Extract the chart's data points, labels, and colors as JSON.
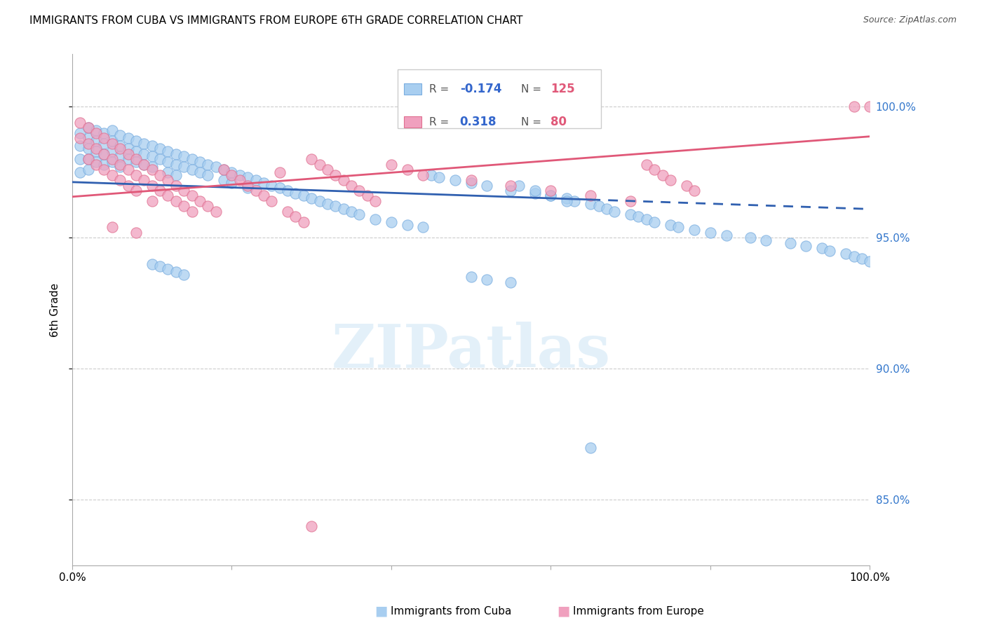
{
  "title": "IMMIGRANTS FROM CUBA VS IMMIGRANTS FROM EUROPE 6TH GRADE CORRELATION CHART",
  "source": "Source: ZipAtlas.com",
  "ylabel": "6th Grade",
  "cuba_color": "#a8cef0",
  "cuba_edge": "#7aaee0",
  "europe_color": "#f0a0be",
  "europe_edge": "#e07090",
  "trendline_cuba_color": "#3060b0",
  "trendline_europe_color": "#e05878",
  "watermark_text": "ZIPatlas",
  "legend_label_cuba": "Immigrants from Cuba",
  "legend_label_europe": "Immigrants from Europe",
  "xlim": [
    0.0,
    1.0
  ],
  "ylim": [
    0.825,
    1.02
  ],
  "yticks": [
    0.85,
    0.9,
    0.95,
    1.0
  ],
  "ytick_labels": [
    "85.0%",
    "90.0%",
    "95.0%",
    "100.0%"
  ],
  "xtick_positions": [
    0.0,
    0.2,
    0.4,
    0.6,
    0.8,
    1.0
  ],
  "xtick_labels": [
    "0.0%",
    "",
    "",
    "",
    "",
    "100.0%"
  ],
  "cuba_R": -0.174,
  "cuba_N": 125,
  "europe_R": 0.318,
  "europe_N": 80,
  "cuba_x": [
    0.01,
    0.01,
    0.01,
    0.01,
    0.02,
    0.02,
    0.02,
    0.02,
    0.02,
    0.03,
    0.03,
    0.03,
    0.03,
    0.04,
    0.04,
    0.04,
    0.04,
    0.05,
    0.05,
    0.05,
    0.05,
    0.06,
    0.06,
    0.06,
    0.06,
    0.07,
    0.07,
    0.07,
    0.08,
    0.08,
    0.08,
    0.09,
    0.09,
    0.09,
    0.1,
    0.1,
    0.1,
    0.11,
    0.11,
    0.12,
    0.12,
    0.12,
    0.13,
    0.13,
    0.13,
    0.14,
    0.14,
    0.15,
    0.15,
    0.16,
    0.16,
    0.17,
    0.17,
    0.18,
    0.19,
    0.19,
    0.2,
    0.2,
    0.21,
    0.22,
    0.22,
    0.23,
    0.24,
    0.25,
    0.26,
    0.27,
    0.28,
    0.29,
    0.3,
    0.31,
    0.32,
    0.33,
    0.34,
    0.35,
    0.36,
    0.38,
    0.4,
    0.42,
    0.44,
    0.45,
    0.46,
    0.48,
    0.5,
    0.52,
    0.55,
    0.58,
    0.6,
    0.62,
    0.63,
    0.65,
    0.66,
    0.67,
    0.68,
    0.7,
    0.71,
    0.72,
    0.73,
    0.75,
    0.76,
    0.78,
    0.8,
    0.82,
    0.85,
    0.87,
    0.9,
    0.92,
    0.94,
    0.95,
    0.97,
    0.98,
    0.99,
    1.0,
    0.1,
    0.11,
    0.12,
    0.13,
    0.14,
    0.5,
    0.52,
    0.55,
    0.56,
    0.58,
    0.6,
    0.62,
    0.65
  ],
  "cuba_y": [
    0.99,
    0.985,
    0.98,
    0.975,
    0.992,
    0.988,
    0.984,
    0.98,
    0.976,
    0.991,
    0.987,
    0.983,
    0.979,
    0.99,
    0.986,
    0.982,
    0.978,
    0.991,
    0.987,
    0.983,
    0.979,
    0.989,
    0.985,
    0.981,
    0.977,
    0.988,
    0.984,
    0.98,
    0.987,
    0.983,
    0.979,
    0.986,
    0.982,
    0.978,
    0.985,
    0.981,
    0.977,
    0.984,
    0.98,
    0.983,
    0.979,
    0.975,
    0.982,
    0.978,
    0.974,
    0.981,
    0.977,
    0.98,
    0.976,
    0.979,
    0.975,
    0.978,
    0.974,
    0.977,
    0.976,
    0.972,
    0.975,
    0.971,
    0.974,
    0.973,
    0.969,
    0.972,
    0.971,
    0.97,
    0.969,
    0.968,
    0.967,
    0.966,
    0.965,
    0.964,
    0.963,
    0.962,
    0.961,
    0.96,
    0.959,
    0.957,
    0.956,
    0.955,
    0.954,
    0.974,
    0.973,
    0.972,
    0.971,
    0.97,
    0.968,
    0.967,
    0.966,
    0.965,
    0.964,
    0.963,
    0.962,
    0.961,
    0.96,
    0.959,
    0.958,
    0.957,
    0.956,
    0.955,
    0.954,
    0.953,
    0.952,
    0.951,
    0.95,
    0.949,
    0.948,
    0.947,
    0.946,
    0.945,
    0.944,
    0.943,
    0.942,
    0.941,
    0.94,
    0.939,
    0.938,
    0.937,
    0.936,
    0.935,
    0.934,
    0.933,
    0.97,
    0.968,
    0.966,
    0.964,
    0.87
  ],
  "europe_x": [
    0.01,
    0.01,
    0.02,
    0.02,
    0.02,
    0.03,
    0.03,
    0.03,
    0.04,
    0.04,
    0.04,
    0.05,
    0.05,
    0.05,
    0.06,
    0.06,
    0.06,
    0.07,
    0.07,
    0.07,
    0.08,
    0.08,
    0.08,
    0.09,
    0.09,
    0.1,
    0.1,
    0.1,
    0.11,
    0.11,
    0.12,
    0.12,
    0.13,
    0.13,
    0.14,
    0.14,
    0.15,
    0.15,
    0.16,
    0.17,
    0.18,
    0.19,
    0.2,
    0.21,
    0.22,
    0.23,
    0.24,
    0.25,
    0.26,
    0.27,
    0.28,
    0.29,
    0.3,
    0.31,
    0.32,
    0.33,
    0.34,
    0.35,
    0.36,
    0.37,
    0.38,
    0.4,
    0.42,
    0.44,
    0.5,
    0.55,
    0.6,
    0.65,
    0.7,
    0.72,
    0.73,
    0.74,
    0.75,
    0.77,
    0.78,
    0.98,
    1.0,
    0.05,
    0.08,
    0.3
  ],
  "europe_y": [
    0.994,
    0.988,
    0.992,
    0.986,
    0.98,
    0.99,
    0.984,
    0.978,
    0.988,
    0.982,
    0.976,
    0.986,
    0.98,
    0.974,
    0.984,
    0.978,
    0.972,
    0.982,
    0.976,
    0.97,
    0.98,
    0.974,
    0.968,
    0.978,
    0.972,
    0.976,
    0.97,
    0.964,
    0.974,
    0.968,
    0.972,
    0.966,
    0.97,
    0.964,
    0.968,
    0.962,
    0.966,
    0.96,
    0.964,
    0.962,
    0.96,
    0.976,
    0.974,
    0.972,
    0.97,
    0.968,
    0.966,
    0.964,
    0.975,
    0.96,
    0.958,
    0.956,
    0.98,
    0.978,
    0.976,
    0.974,
    0.972,
    0.97,
    0.968,
    0.966,
    0.964,
    0.978,
    0.976,
    0.974,
    0.972,
    0.97,
    0.968,
    0.966,
    0.964,
    0.978,
    0.976,
    0.974,
    0.972,
    0.97,
    0.968,
    1.0,
    1.0,
    0.954,
    0.952,
    0.84
  ]
}
